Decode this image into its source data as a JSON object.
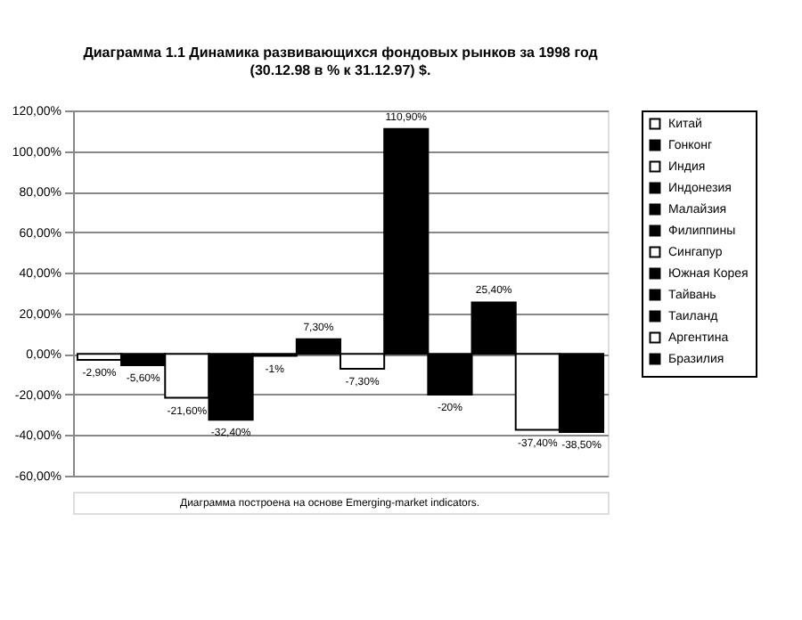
{
  "chart_data": {
    "type": "bar",
    "title": "Диаграмма 1.1 Динамика развивающихся фондовых рынков за 1998 год\n(30.12.98 в % к 31.12.97) $.",
    "categories": [
      null
    ],
    "series": [
      {
        "name": "Китай",
        "color": "#ffffff",
        "values": [
          -2.9
        ],
        "value_labels": [
          "-2,90%"
        ]
      },
      {
        "name": "Гонконг",
        "color": "#000000",
        "values": [
          -5.6
        ],
        "value_labels": [
          "-5,60%"
        ]
      },
      {
        "name": "Индия",
        "color": "#ffffff",
        "values": [
          -21.6
        ],
        "value_labels": [
          "-21,60%"
        ]
      },
      {
        "name": "Индонезия",
        "color": "#000000",
        "values": [
          -32.4
        ],
        "value_labels": [
          "-32,40%"
        ]
      },
      {
        "name": "Малайзия",
        "color": "#000000",
        "values": [
          -1
        ],
        "value_labels": [
          "-1%"
        ]
      },
      {
        "name": "Филиппины",
        "color": "#000000",
        "values": [
          7.3
        ],
        "value_labels": [
          "7,30%"
        ]
      },
      {
        "name": "Сингапур",
        "color": "#ffffff",
        "values": [
          -7.3
        ],
        "value_labels": [
          "-7,30%"
        ]
      },
      {
        "name": "Южная Корея",
        "color": "#000000",
        "values": [
          110.9
        ],
        "value_labels": [
          "110,90%"
        ]
      },
      {
        "name": "Тайвань",
        "color": "#000000",
        "values": [
          -20
        ],
        "value_labels": [
          "-20%"
        ]
      },
      {
        "name": "Таиланд",
        "color": "#000000",
        "values": [
          25.4
        ],
        "value_labels": [
          "25,40%"
        ]
      },
      {
        "name": "Аргентина",
        "color": "#ffffff",
        "values": [
          -37.4
        ],
        "value_labels": [
          "-37,40%"
        ]
      },
      {
        "name": "Бразилия",
        "color": "#000000",
        "values": [
          -38.5
        ],
        "value_labels": [
          "-38,50%"
        ]
      }
    ],
    "ylim": [
      -60,
      120
    ],
    "yticks": [
      {
        "value": -60,
        "label": "-60,00%"
      },
      {
        "value": -40,
        "label": "-40,00%"
      },
      {
        "value": -20,
        "label": "-20,00%"
      },
      {
        "value": 0,
        "label": "0,00%"
      },
      {
        "value": 20,
        "label": "20,00%"
      },
      {
        "value": 40,
        "label": "40,00%"
      },
      {
        "value": 60,
        "label": "60,00%"
      },
      {
        "value": 80,
        "label": "80,00%"
      },
      {
        "value": 100,
        "label": "100,00%"
      },
      {
        "value": 120,
        "label": "120,00%"
      }
    ],
    "grid": "y",
    "legend": "right",
    "tick_labels": "y",
    "annotations": [
      "Диаграмма построена на основе Emerging-market indicators."
    ]
  }
}
